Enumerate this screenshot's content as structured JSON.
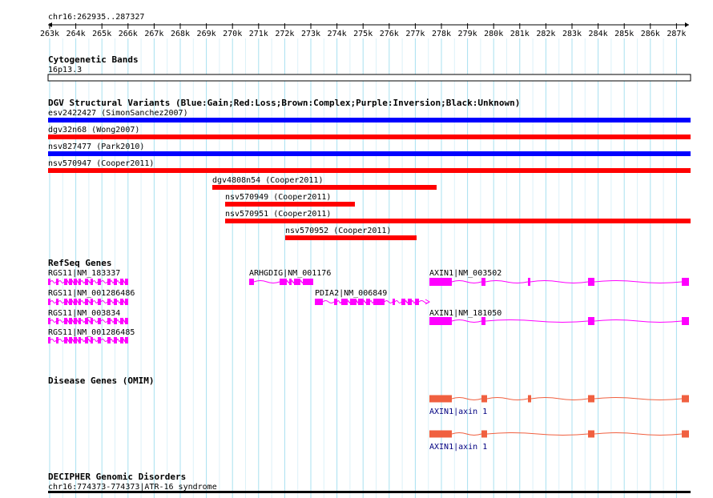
{
  "ruler": {
    "location": "chr16:262935..287327",
    "ticks": [
      "263k",
      "264k",
      "265k",
      "266k",
      "267k",
      "268k",
      "269k",
      "270k",
      "271k",
      "272k",
      "273k",
      "274k",
      "275k",
      "276k",
      "277k",
      "278k",
      "279k",
      "280k",
      "281k",
      "282k",
      "283k",
      "284k",
      "285k",
      "286k",
      "287k"
    ]
  },
  "cyto": {
    "title": "Cytogenetic Bands",
    "band": "16p13.3"
  },
  "dgv": {
    "title": "DGV Structural Variants (Blue:Gain;Red:Loss;Brown:Complex;Purple:Inversion;Black:Unknown)",
    "variants": [
      {
        "label": "esv2422427 (SimonSanchez2007)",
        "type": "Gain",
        "color": "#0000ff"
      },
      {
        "label": "dgv32n68 (Wong2007)",
        "type": "Loss",
        "color": "#ff0000"
      },
      {
        "label": "nsv827477 (Park2010)",
        "type": "Gain",
        "color": "#0000ff"
      },
      {
        "label": "nsv570947 (Cooper2011)",
        "type": "Loss",
        "color": "#ff0000"
      },
      {
        "label": "dgv4808n54 (Cooper2011)",
        "type": "Loss",
        "color": "#ff0000"
      },
      {
        "label": "nsv570949 (Cooper2011)",
        "type": "Loss",
        "color": "#ff0000"
      },
      {
        "label": "nsv570951 (Cooper2011)",
        "type": "Loss",
        "color": "#ff0000"
      },
      {
        "label": "nsv570952 (Cooper2011)",
        "type": "Loss",
        "color": "#ff0000"
      }
    ]
  },
  "refseq": {
    "title": "RefSeq Genes",
    "color": "#ff00ff",
    "genes": [
      {
        "label": "RGS11|NM_183337"
      },
      {
        "label": "RGS11|NM_001286486"
      },
      {
        "label": "RGS11|NM_003834"
      },
      {
        "label": "RGS11|NM_001286485"
      },
      {
        "label": "ARHGDIG|NM_001176"
      },
      {
        "label": "PDIA2|NM_006849"
      },
      {
        "label": "AXIN1|NM_003502"
      },
      {
        "label": "AXIN1|NM_181050"
      }
    ]
  },
  "omim": {
    "title": "Disease Genes (OMIM)",
    "color": "#f06040",
    "genes": [
      {
        "label": "AXIN1|axin 1"
      },
      {
        "label": "AXIN1|axin 1"
      }
    ]
  },
  "decipher": {
    "title": "DECIPHER Genomic Disorders",
    "label": "chr16:774373-774373|ATR-16 syndrome",
    "color": "#000000"
  }
}
